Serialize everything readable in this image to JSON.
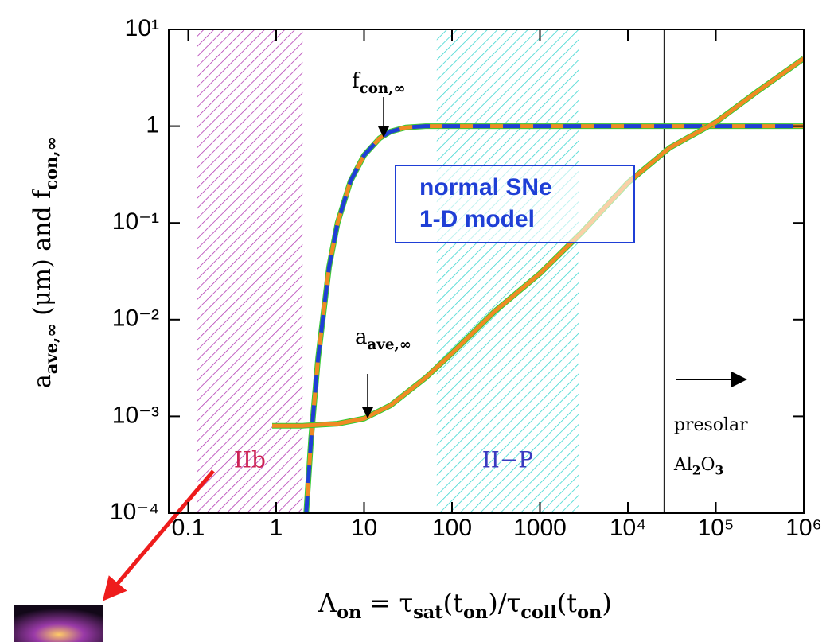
{
  "chart_data": {
    "type": "line",
    "xlabel_parts": [
      "Λ",
      "on",
      " = τ",
      "sat",
      "(t",
      "on",
      ")/τ",
      "coll",
      "(t",
      "on",
      ")"
    ],
    "ylabel_parts": [
      "a",
      "ave,∞",
      " (μm) and f",
      "con,∞"
    ],
    "xlim": [
      0.06,
      1000000
    ],
    "ylim": [
      0.0001,
      10
    ],
    "xscale": "log",
    "yscale": "log",
    "xticks": [
      0.1,
      1,
      10,
      100,
      1000,
      {
        "value": 10000,
        "label": "10⁴"
      },
      {
        "value": 100000,
        "label": "10⁵"
      },
      {
        "value": 1000000,
        "label": "10⁶"
      }
    ],
    "yticks": [
      {
        "value": 0.0001,
        "label": "10⁻⁴"
      },
      {
        "value": 0.001,
        "label": "10⁻³"
      },
      {
        "value": 0.01,
        "label": "10⁻²"
      },
      {
        "value": 0.1,
        "label": "10⁻¹"
      },
      1,
      {
        "value": 10,
        "label": "10¹"
      }
    ],
    "regions": [
      {
        "label": "IIb",
        "x": [
          0.126,
          2.0
        ],
        "color": "#b43cb4",
        "label_color": "#cc2255"
      },
      {
        "label": "II−P",
        "x": [
          67,
          2750
        ],
        "color": "#3cd6d0",
        "label_color": "#3a3ac0"
      }
    ],
    "vline": 26000,
    "vline_label": "presolar",
    "vline_sublabel_parts": [
      "Al",
      "2",
      "O",
      "3"
    ],
    "box_text": [
      "normal SNe",
      "1-D model"
    ],
    "annotations": [
      [
        "f",
        "con,∞"
      ],
      [
        "a",
        "ave,∞"
      ]
    ],
    "series": [
      {
        "x": [
          2.2,
          2.5,
          3,
          4,
          5,
          7,
          10,
          15,
          20,
          30,
          50,
          100,
          1000,
          10000,
          100000,
          1000000
        ],
        "values": [
          0.0001,
          0.0006,
          0.004,
          0.035,
          0.1,
          0.27,
          0.5,
          0.75,
          0.88,
          0.97,
          1,
          1,
          1,
          1,
          1,
          1
        ],
        "color": "#f08a24",
        "under_color": "#33cc33",
        "dash_color": "#1f3fd6"
      },
      {
        "x": [
          0.9,
          2,
          5,
          10,
          20,
          50,
          100,
          300,
          1000,
          3000,
          10000,
          30000,
          100000,
          300000,
          1000000
        ],
        "values": [
          0.0008,
          0.0008,
          0.00084,
          0.00095,
          0.0013,
          0.0025,
          0.0045,
          0.012,
          0.03,
          0.08,
          0.26,
          0.6,
          1.1,
          2.3,
          5
        ],
        "color": "#f08a24",
        "under_color": "#33cc33"
      }
    ]
  }
}
